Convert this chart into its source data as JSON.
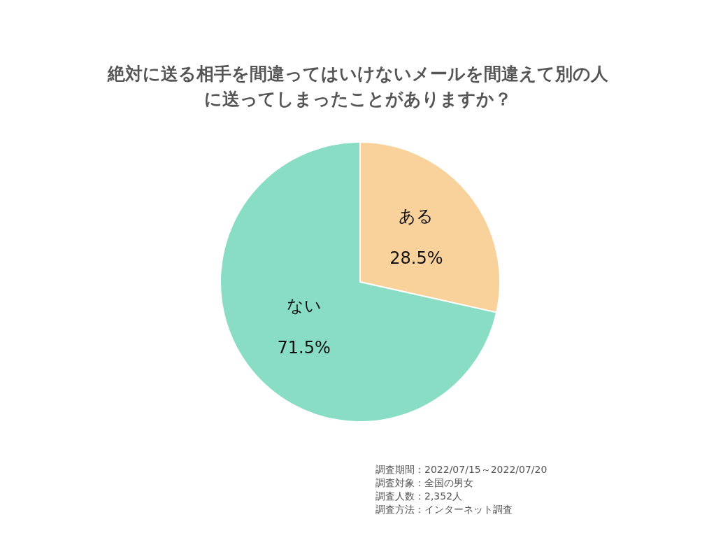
{
  "chart_data": {
    "type": "pie",
    "title": "絶対に送る相手を間違ってはいけないメールを間違えて別の人に送ってしまったことがありますか？",
    "categories": [
      "ある",
      "ない"
    ],
    "values": [
      28.5,
      71.5
    ],
    "colors": [
      "#f9d29b",
      "#88ddc4"
    ],
    "value_labels": [
      "28.5%",
      "71.5%"
    ],
    "legend": false,
    "annotations": [
      "調査期間：2022/07/15～2022/07/20",
      "調査対象：全国の男女",
      "調査人数：2,352人",
      "調査方法：インターネット調査"
    ]
  }
}
